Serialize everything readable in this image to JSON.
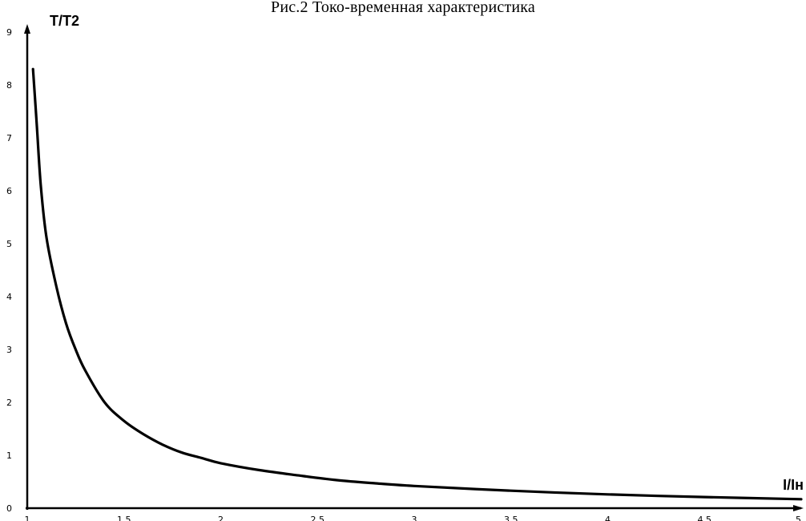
{
  "chart_data": {
    "type": "line",
    "title": "Рис.2 Токо-временная характеристика",
    "ylabel": "T/T2",
    "xlabel": "I/Iн",
    "xlim": [
      1,
      5
    ],
    "ylim": [
      0,
      9
    ],
    "x_ticks": [
      1,
      1.5,
      2,
      2.5,
      3,
      3.5,
      4,
      4.5,
      5
    ],
    "x_tick_labels": [
      "1",
      "1.5",
      "2",
      "2.5",
      "3",
      "3.5",
      "4",
      "4.5",
      "5"
    ],
    "y_ticks": [
      0,
      1,
      2,
      3,
      4,
      5,
      6,
      7,
      8,
      9
    ],
    "y_tick_labels": [
      "0",
      "1",
      "2",
      "3",
      "4",
      "5",
      "6",
      "7",
      "8",
      "9"
    ],
    "grid": false,
    "series": [
      {
        "color": "#000000",
        "x": [
          1.03,
          1.05,
          1.07,
          1.1,
          1.15,
          1.2,
          1.25,
          1.3,
          1.4,
          1.5,
          1.6,
          1.7,
          1.8,
          1.9,
          2.0,
          2.2,
          2.4,
          2.6,
          2.8,
          3.0,
          3.5,
          4.0,
          4.5,
          5.0
        ],
        "y": [
          8.3,
          7.2,
          6.1,
          5.1,
          4.2,
          3.5,
          3.0,
          2.6,
          2.0,
          1.65,
          1.4,
          1.2,
          1.05,
          0.95,
          0.85,
          0.72,
          0.62,
          0.53,
          0.47,
          0.42,
          0.33,
          0.26,
          0.21,
          0.17
        ]
      }
    ]
  }
}
